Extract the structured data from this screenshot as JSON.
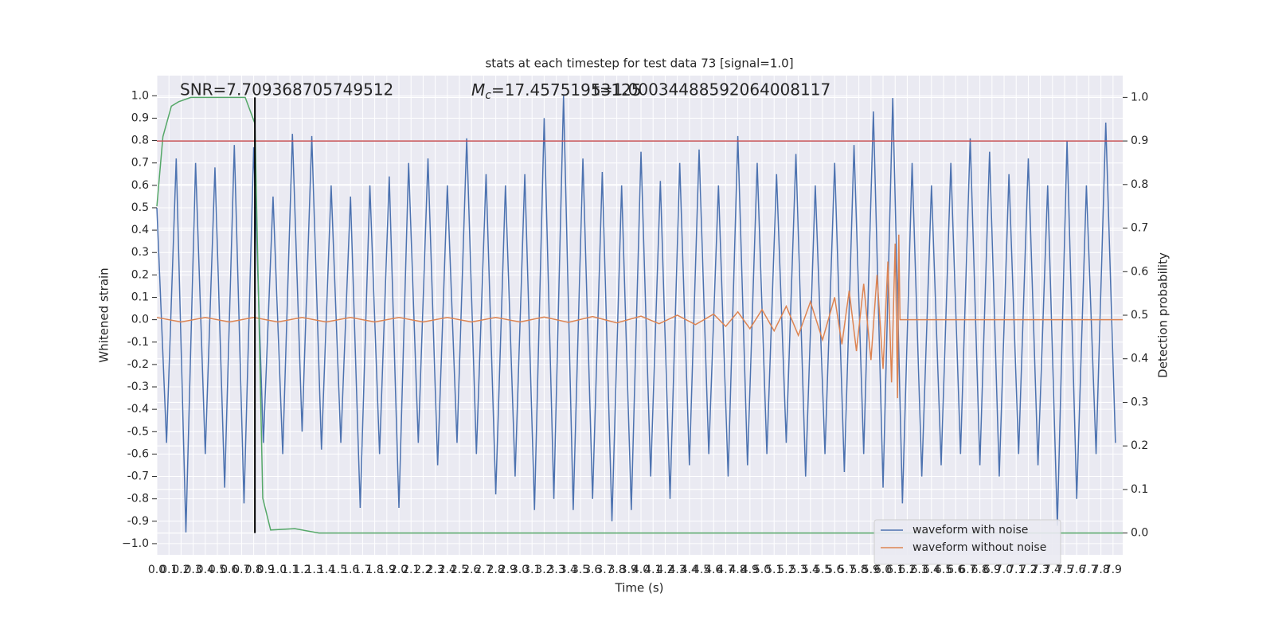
{
  "chart_data": {
    "type": "line",
    "title": "stats at each timestep for test data 73 [signal=1.0]",
    "x_label": "Time (s)",
    "y_label": "Whitened strain",
    "y2_label": "Detection probability",
    "annotations": {
      "snr": "SNR=7.709368705749512",
      "mc": {
        "symbol": "M",
        "subscript": "c",
        "text": "=17.45751953125"
      },
      "t": "t=1.00034488592064008117"
    },
    "xlim": [
      0,
      7.98
    ],
    "ylim": [
      -1.05,
      1.09
    ],
    "y2lim": [
      -0.05,
      1.05
    ],
    "xticks": [
      {
        "value": 0,
        "label": "0.0"
      },
      0.1,
      0.2,
      0.3,
      0.4,
      0.5,
      0.6,
      0.7,
      0.8,
      0.9,
      {
        "value": 1,
        "label": "1.0"
      },
      1.1,
      1.2,
      1.3,
      1.4,
      1.5,
      1.6,
      1.7,
      1.8,
      1.9,
      {
        "value": 2,
        "label": "2.0"
      },
      2.1,
      2.2,
      2.3,
      2.4,
      2.5,
      2.6,
      2.7,
      2.8,
      2.9,
      {
        "value": 3,
        "label": "3.0"
      },
      3.1,
      3.2,
      3.3,
      3.4,
      3.5,
      3.6,
      3.7,
      3.8,
      3.9,
      {
        "value": 4,
        "label": "4.0"
      },
      4.1,
      4.2,
      4.3,
      4.4,
      4.5,
      4.6,
      4.7,
      4.8,
      4.9,
      {
        "value": 5,
        "label": "5.0"
      },
      5.1,
      5.2,
      5.3,
      5.4,
      5.5,
      5.6,
      5.7,
      5.8,
      5.9,
      {
        "value": 6,
        "label": "6.0"
      },
      6.1,
      6.2,
      6.3,
      6.4,
      6.5,
      6.6,
      6.7,
      6.8,
      6.9,
      {
        "value": 7,
        "label": "7.0"
      },
      7.1,
      7.2,
      7.3,
      7.4,
      7.5,
      7.6,
      7.7,
      7.8,
      7.9
    ],
    "yticks": [
      {
        "value": -1,
        "label": "−1.0"
      },
      -0.9,
      -0.8,
      -0.7,
      -0.6,
      -0.5,
      -0.4,
      -0.3,
      -0.2,
      -0.1,
      {
        "value": 0,
        "label": "0.0"
      },
      0.1,
      0.2,
      0.3,
      0.4,
      0.5,
      0.6,
      0.7,
      0.8,
      0.9,
      {
        "value": 1,
        "label": "1.0"
      }
    ],
    "y2ticks": [
      {
        "value": 0,
        "label": "0.0"
      },
      0.1,
      0.2,
      0.3,
      0.4,
      0.5,
      0.6,
      0.7,
      0.8,
      0.9,
      {
        "value": 1,
        "label": "1.0"
      }
    ],
    "grid": true,
    "legend": "lower right",
    "series": [
      {
        "name": "waveform with noise",
        "color": "#4c72b0",
        "x": [
          0,
          0.08,
          0.16,
          0.24,
          0.32,
          0.4,
          0.48,
          0.56,
          0.64,
          0.72,
          0.8,
          0.88,
          0.96,
          1.04,
          1.12,
          1.2,
          1.28,
          1.36,
          1.44,
          1.52,
          1.6,
          1.68,
          1.76,
          1.84,
          1.92,
          2,
          2.08,
          2.16,
          2.24,
          2.32,
          2.4,
          2.48,
          2.56,
          2.64,
          2.72,
          2.8,
          2.88,
          2.96,
          3.04,
          3.12,
          3.2,
          3.28,
          3.36,
          3.44,
          3.52,
          3.6,
          3.68,
          3.76,
          3.84,
          3.92,
          4,
          4.08,
          4.16,
          4.24,
          4.32,
          4.4,
          4.48,
          4.56,
          4.64,
          4.72,
          4.8,
          4.88,
          4.96,
          5.04,
          5.12,
          5.2,
          5.28,
          5.36,
          5.44,
          5.52,
          5.6,
          5.68,
          5.76,
          5.84,
          5.92,
          6,
          6.08,
          6.16,
          6.24,
          6.32,
          6.4,
          6.48,
          6.56,
          6.64,
          6.72,
          6.8,
          6.88,
          6.96,
          7.04,
          7.12,
          7.2,
          7.28,
          7.36,
          7.44,
          7.52,
          7.6,
          7.68,
          7.76,
          7.84,
          7.92
        ],
        "values": [
          0.5,
          -0.55,
          0.72,
          -0.95,
          0.7,
          -0.6,
          0.68,
          -0.75,
          0.78,
          -0.82,
          0.77,
          -0.55,
          0.55,
          -0.6,
          0.83,
          -0.5,
          0.82,
          -0.58,
          0.6,
          -0.55,
          0.55,
          -0.84,
          0.6,
          -0.6,
          0.64,
          -0.84,
          0.7,
          -0.55,
          0.72,
          -0.65,
          0.6,
          -0.55,
          0.81,
          -0.6,
          0.65,
          -0.78,
          0.6,
          -0.7,
          0.65,
          -0.85,
          0.9,
          -0.8,
          1.0,
          -0.85,
          0.72,
          -0.8,
          0.66,
          -0.9,
          0.6,
          -0.85,
          0.75,
          -0.7,
          0.62,
          -0.8,
          0.7,
          -0.65,
          0.76,
          -0.6,
          0.6,
          -0.7,
          0.82,
          -0.65,
          0.7,
          -0.6,
          0.65,
          -0.55,
          0.74,
          -0.7,
          0.6,
          -0.6,
          0.7,
          -0.68,
          0.78,
          -0.6,
          0.93,
          -0.75,
          0.99,
          -0.82,
          0.7,
          -0.7,
          0.6,
          -0.65,
          0.7,
          -0.6,
          0.81,
          -0.65,
          0.75,
          -0.7,
          0.65,
          -0.6,
          0.72,
          -0.65,
          0.6,
          -0.92,
          0.8,
          -0.8,
          0.6,
          -0.6,
          0.88,
          -0.55
        ]
      },
      {
        "name": "waveform without noise",
        "color": "#dd8452",
        "x": [
          0,
          0.2,
          0.4,
          0.6,
          0.8,
          1,
          1.2,
          1.4,
          1.6,
          1.8,
          2,
          2.2,
          2.4,
          2.6,
          2.8,
          3,
          3.2,
          3.4,
          3.6,
          3.8,
          4,
          4.15,
          4.3,
          4.45,
          4.6,
          4.7,
          4.8,
          4.9,
          5,
          5.1,
          5.2,
          5.3,
          5.4,
          5.5,
          5.6,
          5.66,
          5.72,
          5.78,
          5.84,
          5.9,
          5.95,
          6,
          6.04,
          6.07,
          6.1,
          6.12,
          6.13,
          6.14,
          7.98
        ],
        "values": [
          0.01,
          -0.01,
          0.01,
          -0.01,
          0.01,
          -0.01,
          0.01,
          -0.01,
          0.01,
          -0.01,
          0.01,
          -0.01,
          0.01,
          -0.01,
          0.01,
          -0.01,
          0.012,
          -0.012,
          0.014,
          -0.014,
          0.016,
          -0.018,
          0.02,
          -0.022,
          0.025,
          -0.03,
          0.035,
          -0.04,
          0.045,
          -0.05,
          0.06,
          -0.07,
          0.08,
          -0.09,
          0.1,
          -0.11,
          0.13,
          -0.14,
          0.16,
          -0.18,
          0.2,
          -0.22,
          0.26,
          -0.28,
          0.34,
          -0.35,
          0.38,
          0,
          0
        ]
      },
      {
        "color": "#55a868",
        "axis": "y2",
        "x": [
          0,
          0.05,
          0.12,
          0.18,
          0.28,
          0.73,
          0.81,
          0.875,
          0.94,
          1.14,
          1.34,
          7.98
        ],
        "values": [
          0.75,
          0.91,
          0.98,
          0.99,
          1.0,
          1.0,
          0.94,
          0.08,
          0.007,
          0.01,
          0,
          0
        ]
      }
    ],
    "hlines": [
      {
        "value": 0.9,
        "axis": "y2",
        "color": "#c44e52"
      }
    ],
    "vlines": [
      {
        "value": 0.81,
        "color": "#000000"
      }
    ]
  }
}
